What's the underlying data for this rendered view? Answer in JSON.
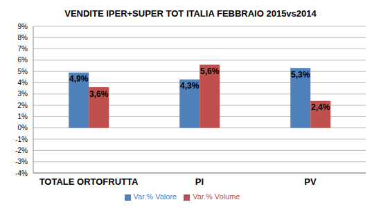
{
  "chart_data": {
    "type": "bar",
    "title": "VENDITE IPER+SUPER TOT ITALIA FEBBRAIO 2015vs2014",
    "categories": [
      "TOTALE ORTOFRUTTA",
      "PI",
      "PV"
    ],
    "series": [
      {
        "name": "Var.% Valore",
        "color": "#4f81bd",
        "values": [
          4.9,
          4.3,
          5.3
        ],
        "value_labels": [
          "4,9%",
          "4,3%",
          "5,3%"
        ]
      },
      {
        "name": "Var.% Volume",
        "color": "#c0504d",
        "values": [
          3.6,
          5.6,
          2.4
        ],
        "value_labels": [
          "3,6%",
          "5,6%",
          "2,4%"
        ]
      }
    ],
    "ylim": [
      -4,
      9
    ],
    "yticks": [
      {
        "value": -4,
        "label": "-4%"
      },
      {
        "value": -3,
        "label": "-3%"
      },
      {
        "value": -2,
        "label": "-2%"
      },
      {
        "value": -1,
        "label": "-1%"
      },
      {
        "value": 0,
        "label": "0%"
      },
      {
        "value": 1,
        "label": "1%"
      },
      {
        "value": 2,
        "label": "2%"
      },
      {
        "value": 3,
        "label": "3%"
      },
      {
        "value": 4,
        "label": "4%"
      },
      {
        "value": 5,
        "label": "5%"
      },
      {
        "value": 6,
        "label": "6%"
      },
      {
        "value": 7,
        "label": "7%"
      },
      {
        "value": 8,
        "label": "8%"
      },
      {
        "value": 9,
        "label": "9%"
      }
    ],
    "grid": true,
    "legend": "bottom",
    "data_labels": true
  }
}
